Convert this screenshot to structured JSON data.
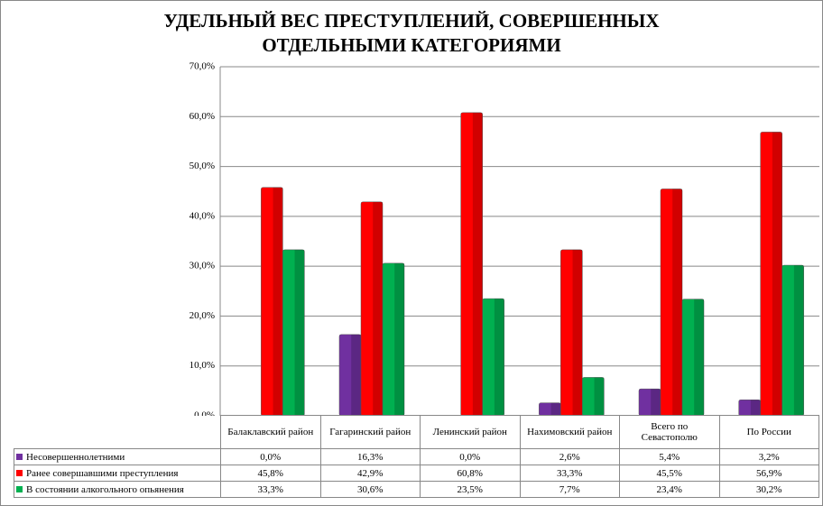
{
  "chart_data": {
    "type": "bar",
    "title": [
      "УДЕЛЬНЫЙ ВЕС ПРЕСТУПЛЕНИЙ, СОВЕРШЕННЫХ",
      "ОТДЕЛЬНЫМИ КАТЕГОРИЯМИ"
    ],
    "categories": [
      "Балаклавский район",
      "Гагаринский район",
      "Ленинский район",
      "Нахимовский район",
      "Всего по Севастополю",
      "По России"
    ],
    "series": [
      {
        "name": "Несовершеннолетними",
        "color": "#7030a0",
        "values": [
          0,
          16.3,
          0,
          2.6,
          5.4,
          3.2
        ],
        "value_labels": [
          "0,0%",
          "16,3%",
          "0,0%",
          "2,6%",
          "5,4%",
          "3,2%"
        ]
      },
      {
        "name": "Ранее совершавшими преступления",
        "color": "#ff0000",
        "values": [
          45.8,
          42.9,
          60.8,
          33.3,
          45.5,
          56.9
        ],
        "value_labels": [
          "45,8%",
          "42,9%",
          "60,8%",
          "33,3%",
          "45,5%",
          "56,9%"
        ]
      },
      {
        "name": "В состоянии алкогольного опьянения",
        "color": "#00b050",
        "values": [
          33.3,
          30.6,
          23.5,
          7.7,
          23.4,
          30.2
        ],
        "value_labels": [
          "33,3%",
          "30,6%",
          "23,5%",
          "7,7%",
          "23,4%",
          "30,2%"
        ]
      }
    ],
    "ylim": [
      0,
      70
    ],
    "yticks": [
      {
        "value": 0,
        "label": "0,0%"
      },
      {
        "value": 10,
        "label": "10,0%"
      },
      {
        "value": 20,
        "label": "20,0%"
      },
      {
        "value": 30,
        "label": "30,0%"
      },
      {
        "value": 40,
        "label": "40,0%"
      },
      {
        "value": 50,
        "label": "50,0%"
      },
      {
        "value": 60,
        "label": "60,0%"
      },
      {
        "value": 70,
        "label": "70,0%"
      }
    ],
    "grid": true
  }
}
